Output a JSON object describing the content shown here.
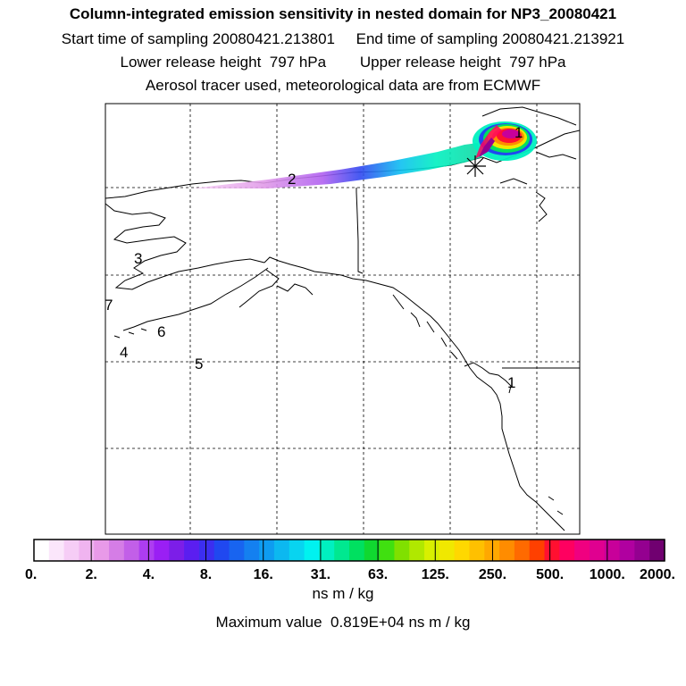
{
  "header": {
    "title": "Column-integrated emission sensitivity in nested domain for NP3_20080421",
    "start_label": "Start time of sampling 20080421.213801",
    "end_label": "End time of sampling 20080421.213921",
    "lower_label": "Lower release height  797 hPa",
    "upper_label": "Upper release height  797 hPa",
    "info": "Aerosol tracer used, meteorological data are from ECMWF"
  },
  "map": {
    "labels": [
      {
        "text": "1",
        "id": "1"
      },
      {
        "text": "2",
        "id": "2"
      },
      {
        "text": "3",
        "id": "3"
      },
      {
        "text": "4",
        "id": "4"
      },
      {
        "text": "5",
        "id": "5"
      },
      {
        "text": "6",
        "id": "6"
      },
      {
        "text": "7",
        "id": "7"
      },
      {
        "text": "1",
        "id": "1b"
      }
    ]
  },
  "colorbar": {
    "tick_labels": [
      "0.",
      "2.",
      "4.",
      "8.",
      "16.",
      "31.",
      "63.",
      "125.",
      "250.",
      "500.",
      "1000.",
      "2000."
    ],
    "colors": [
      "#ffffff",
      "#fbe6fb",
      "#f6cdf6",
      "#f0b4f0",
      "#e89ae8",
      "#d57de6",
      "#c25fe8",
      "#ad3df0",
      "#9a1ff4",
      "#7c1ee8",
      "#5b1ef0",
      "#3c2ef0",
      "#2048f0",
      "#1864f0",
      "#1480f0",
      "#0e9cf0",
      "#0cb8f0",
      "#08d4f0",
      "#00f2f0",
      "#00f0c0",
      "#00e890",
      "#00e060",
      "#10d830",
      "#40e010",
      "#80e000",
      "#b0e800",
      "#d8f000",
      "#f0e800",
      "#ffd800",
      "#ffc000",
      "#ffa800",
      "#ff8c00",
      "#ff6a00",
      "#ff4000",
      "#ff1030",
      "#ff0060",
      "#f00080",
      "#e00090",
      "#c8009a",
      "#b000a0",
      "#940090",
      "#700070"
    ],
    "units": "ns m / kg",
    "max_value_text": "Maximum value  0.819E+04 ns m / kg"
  }
}
